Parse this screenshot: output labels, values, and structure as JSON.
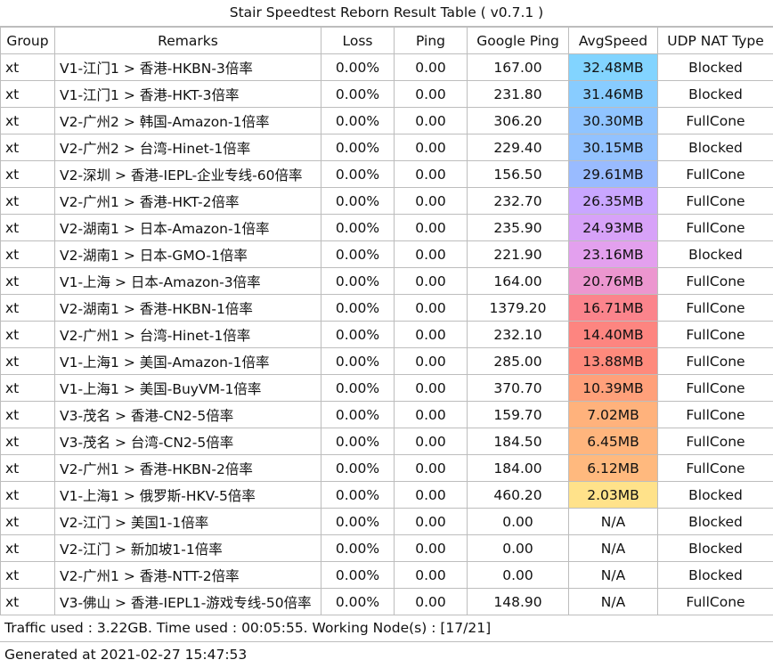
{
  "title": "Stair Speedtest Reborn Result Table ( v0.7.1 )",
  "columns": [
    "Group",
    "Remarks",
    "Loss",
    "Ping",
    "Google Ping",
    "AvgSpeed",
    "UDP NAT Type"
  ],
  "rows": [
    {
      "group": "xt",
      "remarks": "V1-江门1 > 香港-HKBN-3倍率",
      "loss": "0.00%",
      "ping": "0.00",
      "google_ping": "167.00",
      "avg_speed": "32.48MB",
      "nat": "Blocked",
      "speed_color": "#82d4ff"
    },
    {
      "group": "xt",
      "remarks": "V1-江门1 > 香港-HKT-3倍率",
      "loss": "0.00%",
      "ping": "0.00",
      "google_ping": "231.80",
      "avg_speed": "31.46MB",
      "nat": "Blocked",
      "speed_color": "#88ccff"
    },
    {
      "group": "xt",
      "remarks": "V2-广州2 > 韩国-Amazon-1倍率",
      "loss": "0.00%",
      "ping": "0.00",
      "google_ping": "306.20",
      "avg_speed": "30.30MB",
      "nat": "FullCone",
      "speed_color": "#90c4ff"
    },
    {
      "group": "xt",
      "remarks": "V2-广州2 > 台湾-Hinet-1倍率",
      "loss": "0.00%",
      "ping": "0.00",
      "google_ping": "229.40",
      "avg_speed": "30.15MB",
      "nat": "Blocked",
      "speed_color": "#92c2ff"
    },
    {
      "group": "xt",
      "remarks": "V2-深圳 > 香港-IEPL-企业专线-60倍率",
      "loss": "0.00%",
      "ping": "0.00",
      "google_ping": "156.50",
      "avg_speed": "29.61MB",
      "nat": "FullCone",
      "speed_color": "#99bbff"
    },
    {
      "group": "xt",
      "remarks": "V2-广州1 > 香港-HKT-2倍率",
      "loss": "0.00%",
      "ping": "0.00",
      "google_ping": "232.70",
      "avg_speed": "26.35MB",
      "nat": "FullCone",
      "speed_color": "#c9a6ff"
    },
    {
      "group": "xt",
      "remarks": "V2-湖南1 > 日本-Amazon-1倍率",
      "loss": "0.00%",
      "ping": "0.00",
      "google_ping": "235.90",
      "avg_speed": "24.93MB",
      "nat": "FullCone",
      "speed_color": "#d7a2f8"
    },
    {
      "group": "xt",
      "remarks": "V2-湖南1 > 日本-GMO-1倍率",
      "loss": "0.00%",
      "ping": "0.00",
      "google_ping": "221.90",
      "avg_speed": "23.16MB",
      "nat": "Blocked",
      "speed_color": "#e3a0ee"
    },
    {
      "group": "xt",
      "remarks": "V1-上海 > 日本-Amazon-3倍率",
      "loss": "0.00%",
      "ping": "0.00",
      "google_ping": "164.00",
      "avg_speed": "20.76MB",
      "nat": "FullCone",
      "speed_color": "#ec96cf"
    },
    {
      "group": "xt",
      "remarks": "V2-湖南1 > 香港-HKBN-1倍率",
      "loss": "0.00%",
      "ping": "0.00",
      "google_ping": "1379.20",
      "avg_speed": "16.71MB",
      "nat": "FullCone",
      "speed_color": "#fb848c"
    },
    {
      "group": "xt",
      "remarks": "V2-广州1 > 台湾-Hinet-1倍率",
      "loss": "0.00%",
      "ping": "0.00",
      "google_ping": "232.10",
      "avg_speed": "14.40MB",
      "nat": "FullCone",
      "speed_color": "#fd8580"
    },
    {
      "group": "xt",
      "remarks": "V1-上海1 > 美国-Amazon-1倍率",
      "loss": "0.00%",
      "ping": "0.00",
      "google_ping": "285.00",
      "avg_speed": "13.88MB",
      "nat": "FullCone",
      "speed_color": "#fe8a7c"
    },
    {
      "group": "xt",
      "remarks": "V1-上海1 > 美国-BuyVM-1倍率",
      "loss": "0.00%",
      "ping": "0.00",
      "google_ping": "370.70",
      "avg_speed": "10.39MB",
      "nat": "FullCone",
      "speed_color": "#ffa07a"
    },
    {
      "group": "xt",
      "remarks": "V3-茂名 > 香港-CN2-5倍率",
      "loss": "0.00%",
      "ping": "0.00",
      "google_ping": "159.70",
      "avg_speed": "7.02MB",
      "nat": "FullCone",
      "speed_color": "#ffb27c"
    },
    {
      "group": "xt",
      "remarks": "V3-茂名 > 台湾-CN2-5倍率",
      "loss": "0.00%",
      "ping": "0.00",
      "google_ping": "184.50",
      "avg_speed": "6.45MB",
      "nat": "FullCone",
      "speed_color": "#ffb57d"
    },
    {
      "group": "xt",
      "remarks": "V2-广州1 > 香港-HKBN-2倍率",
      "loss": "0.00%",
      "ping": "0.00",
      "google_ping": "184.00",
      "avg_speed": "6.12MB",
      "nat": "FullCone",
      "speed_color": "#ffb97e"
    },
    {
      "group": "xt",
      "remarks": "V1-上海1 > 俄罗斯-HKV-5倍率",
      "loss": "0.00%",
      "ping": "0.00",
      "google_ping": "460.20",
      "avg_speed": "2.03MB",
      "nat": "Blocked",
      "speed_color": "#ffe28a"
    },
    {
      "group": "xt",
      "remarks": "V2-江门 > 美国1-1倍率",
      "loss": "0.00%",
      "ping": "0.00",
      "google_ping": "0.00",
      "avg_speed": "N/A",
      "nat": "Blocked",
      "speed_color": "#ffffff"
    },
    {
      "group": "xt",
      "remarks": "V2-江门 > 新加坡1-1倍率",
      "loss": "0.00%",
      "ping": "0.00",
      "google_ping": "0.00",
      "avg_speed": "N/A",
      "nat": "Blocked",
      "speed_color": "#ffffff"
    },
    {
      "group": "xt",
      "remarks": "V2-广州1 > 香港-NTT-2倍率",
      "loss": "0.00%",
      "ping": "0.00",
      "google_ping": "0.00",
      "avg_speed": "N/A",
      "nat": "Blocked",
      "speed_color": "#ffffff"
    },
    {
      "group": "xt",
      "remarks": "V3-佛山 > 香港-IEPL1-游戏专线-50倍率",
      "loss": "0.00%",
      "ping": "0.00",
      "google_ping": "148.90",
      "avg_speed": "N/A",
      "nat": "FullCone",
      "speed_color": "#ffffff"
    }
  ],
  "footer": {
    "traffic": "Traffic used : 3.22GB. Time used : 00:05:55. Working Node(s) : [17/21]",
    "generated": "Generated at 2021-02-27 15:47:53"
  }
}
